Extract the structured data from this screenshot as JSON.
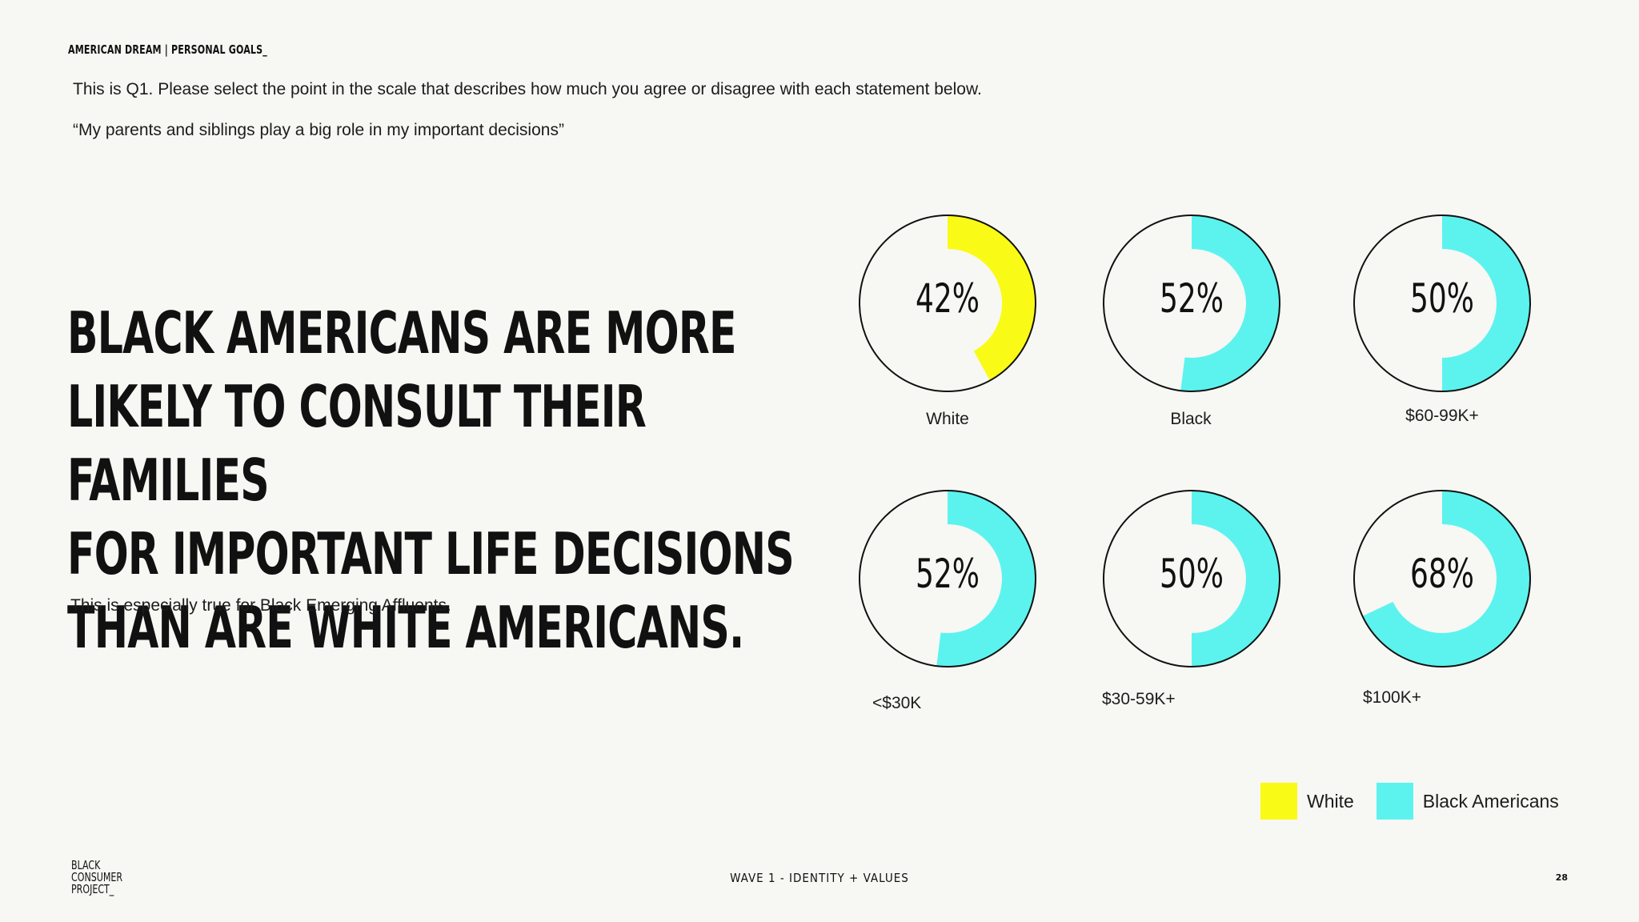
{
  "header": "AMERICAN DREAM | PERSONAL GOALS_",
  "question": "This is Q1. Please select the point in the scale that describes how much you agree or disagree with each statement below.",
  "statement": "“My parents and siblings play a big role in my important decisions”",
  "headline": {
    "lines": [
      "BLACK AMERICANS ARE MORE",
      "LIKELY TO CONSULT THEIR FAMILIES",
      "FOR IMPORTANT LIFE DECISIONS",
      "THAN ARE WHITE AMERICANS."
    ]
  },
  "subhead": "This is especially true for Black Emerging Affluents.",
  "chart_data": {
    "type": "donut",
    "unit": "%",
    "items": [
      {
        "label": "White",
        "value": 42,
        "value_label": "42%",
        "series": "White"
      },
      {
        "label": "Black",
        "value": 52,
        "value_label": "52%",
        "series": "Black Americans"
      },
      {
        "label": "$60-99K+",
        "value": 50,
        "value_label": "50%",
        "series": "Black Americans"
      },
      {
        "label": "<$30K",
        "value": 52,
        "value_label": "52%",
        "series": "Black Americans"
      },
      {
        "label": "$30-59K+",
        "value": 50,
        "value_label": "50%",
        "series": "Black Americans"
      },
      {
        "label": "$100K+",
        "value": 68,
        "value_label": "68%",
        "series": "Black Americans"
      }
    ],
    "legend": [
      {
        "label": "White",
        "color": "#fafa17"
      },
      {
        "label": "Black Americans",
        "color": "#5cf3ef"
      }
    ],
    "legend_position": "bottom-right"
  },
  "footer": {
    "logo_lines": [
      "BLACK",
      "CONSUMER",
      "PROJECT_"
    ],
    "center": "WAVE 1 - IDENTITY + VALUES",
    "page": "28"
  }
}
